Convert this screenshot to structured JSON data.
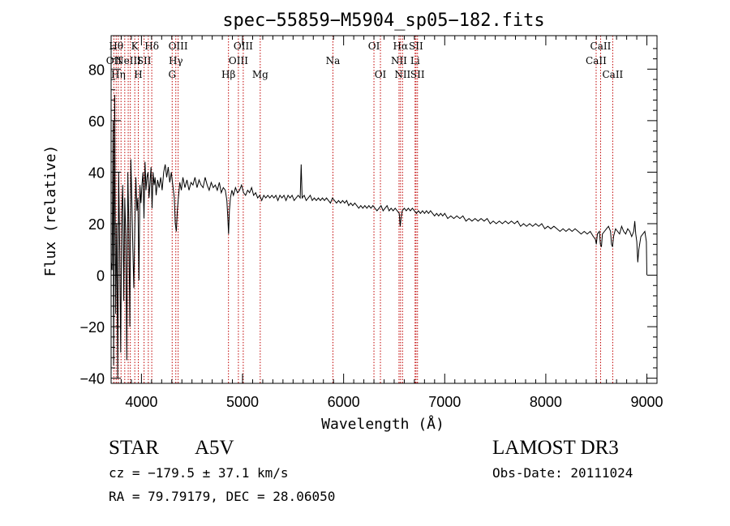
{
  "chart_data": {
    "type": "line",
    "title": "spec−55859−M5904_sp05−182.fits",
    "xlabel": "Wavelength (Å)",
    "ylabel": "Flux (relative)",
    "xlim": [
      3700,
      9100
    ],
    "ylim": [
      -42,
      93
    ],
    "x_ticks": [
      4000,
      5000,
      6000,
      7000,
      8000,
      9000
    ],
    "y_ticks": [
      -40,
      -20,
      0,
      20,
      40,
      60,
      80
    ],
    "x_tick_labels": [
      "4000",
      "5000",
      "6000",
      "7000",
      "8000",
      "9000"
    ],
    "y_tick_labels": [
      "−40",
      "−20",
      "0",
      "20",
      "40",
      "60",
      "80"
    ],
    "series": [
      {
        "name": "spectrum",
        "points": [
          [
            3700,
            5
          ],
          [
            3710,
            2
          ],
          [
            3720,
            60
          ],
          [
            3725,
            -35
          ],
          [
            3735,
            70
          ],
          [
            3745,
            -15
          ],
          [
            3755,
            20
          ],
          [
            3765,
            -40
          ],
          [
            3775,
            40
          ],
          [
            3785,
            10
          ],
          [
            3795,
            -30
          ],
          [
            3805,
            25
          ],
          [
            3815,
            35
          ],
          [
            3825,
            -10
          ],
          [
            3835,
            30
          ],
          [
            3845,
            15
          ],
          [
            3855,
            -33
          ],
          [
            3865,
            40
          ],
          [
            3875,
            20
          ],
          [
            3885,
            -20
          ],
          [
            3895,
            45
          ],
          [
            3905,
            30
          ],
          [
            3915,
            10
          ],
          [
            3925,
            -5
          ],
          [
            3935,
            20
          ],
          [
            3945,
            38
          ],
          [
            3955,
            25
          ],
          [
            3965,
            30
          ],
          [
            3975,
            -2
          ],
          [
            3985,
            35
          ],
          [
            3995,
            28
          ],
          [
            4005,
            35
          ],
          [
            4015,
            40
          ],
          [
            4025,
            22
          ],
          [
            4035,
            44
          ],
          [
            4045,
            33
          ],
          [
            4055,
            38
          ],
          [
            4065,
            40
          ],
          [
            4075,
            30
          ],
          [
            4085,
            36
          ],
          [
            4095,
            42
          ],
          [
            4105,
            26
          ],
          [
            4115,
            40
          ],
          [
            4125,
            35
          ],
          [
            4135,
            38
          ],
          [
            4145,
            31
          ],
          [
            4160,
            37
          ],
          [
            4175,
            34
          ],
          [
            4190,
            38
          ],
          [
            4205,
            33
          ],
          [
            4220,
            40
          ],
          [
            4235,
            43
          ],
          [
            4250,
            38
          ],
          [
            4265,
            42
          ],
          [
            4280,
            36
          ],
          [
            4295,
            40
          ],
          [
            4310,
            35
          ],
          [
            4325,
            30
          ],
          [
            4335,
            20
          ],
          [
            4345,
            17
          ],
          [
            4355,
            25
          ],
          [
            4365,
            30
          ],
          [
            4380,
            36
          ],
          [
            4395,
            33
          ],
          [
            4410,
            38
          ],
          [
            4430,
            34
          ],
          [
            4450,
            37
          ],
          [
            4470,
            33
          ],
          [
            4490,
            36
          ],
          [
            4510,
            35
          ],
          [
            4530,
            38
          ],
          [
            4550,
            34
          ],
          [
            4570,
            37
          ],
          [
            4590,
            35
          ],
          [
            4610,
            34
          ],
          [
            4630,
            38
          ],
          [
            4650,
            35
          ],
          [
            4670,
            33
          ],
          [
            4690,
            36
          ],
          [
            4710,
            34
          ],
          [
            4730,
            35
          ],
          [
            4750,
            33
          ],
          [
            4770,
            36
          ],
          [
            4790,
            32
          ],
          [
            4810,
            34
          ],
          [
            4830,
            33
          ],
          [
            4845,
            29
          ],
          [
            4855,
            22
          ],
          [
            4862,
            16
          ],
          [
            4870,
            25
          ],
          [
            4880,
            30
          ],
          [
            4895,
            33
          ],
          [
            4910,
            31
          ],
          [
            4930,
            34
          ],
          [
            4950,
            32
          ],
          [
            4970,
            33
          ],
          [
            4990,
            35
          ],
          [
            5010,
            32
          ],
          [
            5030,
            31
          ],
          [
            5050,
            33
          ],
          [
            5070,
            32
          ],
          [
            5090,
            34
          ],
          [
            5110,
            31
          ],
          [
            5130,
            32
          ],
          [
            5150,
            30
          ],
          [
            5170,
            31
          ],
          [
            5190,
            29
          ],
          [
            5210,
            31
          ],
          [
            5230,
            30
          ],
          [
            5250,
            31
          ],
          [
            5270,
            30
          ],
          [
            5290,
            31
          ],
          [
            5310,
            30
          ],
          [
            5330,
            31
          ],
          [
            5350,
            29
          ],
          [
            5370,
            31
          ],
          [
            5390,
            30
          ],
          [
            5410,
            31
          ],
          [
            5430,
            29
          ],
          [
            5450,
            31
          ],
          [
            5470,
            30
          ],
          [
            5490,
            31
          ],
          [
            5510,
            29
          ],
          [
            5530,
            30
          ],
          [
            5550,
            31
          ],
          [
            5570,
            30
          ],
          [
            5580,
            43
          ],
          [
            5590,
            30
          ],
          [
            5610,
            31
          ],
          [
            5630,
            29
          ],
          [
            5650,
            30
          ],
          [
            5670,
            31
          ],
          [
            5690,
            29
          ],
          [
            5710,
            30
          ],
          [
            5730,
            29
          ],
          [
            5750,
            30
          ],
          [
            5770,
            29
          ],
          [
            5790,
            30
          ],
          [
            5810,
            29
          ],
          [
            5830,
            30
          ],
          [
            5850,
            29
          ],
          [
            5870,
            28
          ],
          [
            5890,
            30
          ],
          [
            5910,
            29
          ],
          [
            5930,
            28
          ],
          [
            5950,
            29
          ],
          [
            5970,
            28
          ],
          [
            5990,
            29
          ],
          [
            6010,
            28
          ],
          [
            6030,
            29
          ],
          [
            6050,
            27
          ],
          [
            6070,
            28
          ],
          [
            6090,
            27
          ],
          [
            6110,
            28
          ],
          [
            6130,
            27
          ],
          [
            6150,
            26
          ],
          [
            6170,
            27
          ],
          [
            6190,
            26
          ],
          [
            6210,
            27
          ],
          [
            6230,
            26
          ],
          [
            6250,
            27
          ],
          [
            6270,
            26
          ],
          [
            6290,
            27
          ],
          [
            6310,
            26
          ],
          [
            6330,
            25
          ],
          [
            6350,
            26
          ],
          [
            6370,
            27
          ],
          [
            6390,
            25
          ],
          [
            6410,
            26
          ],
          [
            6430,
            27
          ],
          [
            6450,
            25
          ],
          [
            6470,
            26
          ],
          [
            6490,
            25
          ],
          [
            6510,
            26
          ],
          [
            6530,
            25
          ],
          [
            6550,
            24
          ],
          [
            6560,
            19
          ],
          [
            6568,
            22
          ],
          [
            6580,
            25
          ],
          [
            6600,
            26
          ],
          [
            6620,
            25
          ],
          [
            6640,
            26
          ],
          [
            6660,
            25
          ],
          [
            6680,
            26
          ],
          [
            6700,
            25
          ],
          [
            6720,
            24
          ],
          [
            6740,
            25
          ],
          [
            6760,
            24
          ],
          [
            6780,
            25
          ],
          [
            6800,
            24
          ],
          [
            6820,
            25
          ],
          [
            6840,
            24
          ],
          [
            6860,
            25
          ],
          [
            6880,
            24
          ],
          [
            6900,
            23
          ],
          [
            6920,
            24
          ],
          [
            6940,
            23
          ],
          [
            6960,
            24
          ],
          [
            6980,
            23
          ],
          [
            7000,
            24
          ],
          [
            7030,
            22
          ],
          [
            7060,
            23
          ],
          [
            7090,
            22
          ],
          [
            7120,
            23
          ],
          [
            7150,
            22
          ],
          [
            7180,
            23
          ],
          [
            7210,
            21
          ],
          [
            7240,
            22
          ],
          [
            7270,
            21
          ],
          [
            7300,
            22
          ],
          [
            7330,
            21
          ],
          [
            7360,
            22
          ],
          [
            7390,
            21
          ],
          [
            7420,
            22
          ],
          [
            7450,
            20
          ],
          [
            7480,
            21
          ],
          [
            7510,
            20
          ],
          [
            7540,
            21
          ],
          [
            7570,
            20
          ],
          [
            7600,
            21
          ],
          [
            7630,
            20
          ],
          [
            7660,
            21
          ],
          [
            7690,
            20
          ],
          [
            7720,
            21
          ],
          [
            7750,
            19
          ],
          [
            7780,
            20
          ],
          [
            7810,
            19
          ],
          [
            7840,
            20
          ],
          [
            7870,
            19
          ],
          [
            7900,
            20
          ],
          [
            7930,
            19
          ],
          [
            7960,
            20
          ],
          [
            7990,
            18
          ],
          [
            8020,
            19
          ],
          [
            8050,
            18
          ],
          [
            8080,
            19
          ],
          [
            8110,
            18
          ],
          [
            8140,
            17
          ],
          [
            8170,
            18
          ],
          [
            8200,
            17
          ],
          [
            8230,
            18
          ],
          [
            8260,
            17
          ],
          [
            8290,
            18
          ],
          [
            8320,
            17
          ],
          [
            8350,
            16
          ],
          [
            8380,
            17
          ],
          [
            8410,
            16
          ],
          [
            8440,
            17
          ],
          [
            8470,
            15
          ],
          [
            8490,
            14
          ],
          [
            8500,
            12
          ],
          [
            8510,
            16
          ],
          [
            8530,
            17
          ],
          [
            8540,
            12
          ],
          [
            8550,
            11
          ],
          [
            8560,
            16
          ],
          [
            8580,
            17
          ],
          [
            8600,
            18
          ],
          [
            8620,
            19
          ],
          [
            8640,
            17
          ],
          [
            8650,
            12
          ],
          [
            8660,
            11
          ],
          [
            8670,
            15
          ],
          [
            8690,
            18
          ],
          [
            8710,
            17
          ],
          [
            8730,
            16
          ],
          [
            8750,
            19
          ],
          [
            8770,
            17
          ],
          [
            8790,
            16
          ],
          [
            8810,
            18
          ],
          [
            8830,
            17
          ],
          [
            8850,
            15
          ],
          [
            8870,
            17
          ],
          [
            8880,
            21
          ],
          [
            8890,
            16
          ],
          [
            8900,
            13
          ],
          [
            8910,
            5
          ],
          [
            8920,
            10
          ],
          [
            8940,
            15
          ],
          [
            8960,
            16
          ],
          [
            8980,
            17
          ],
          [
            8995,
            13
          ],
          [
            9000,
            0
          ]
        ]
      }
    ],
    "lines": [
      {
        "wl": 3727,
        "label": "OII",
        "row": 2
      },
      {
        "wl": 3750,
        "label": "Hθ",
        "row": 1
      },
      {
        "wl": 3771,
        "label": "Hη",
        "row": 3
      },
      {
        "wl": 3798,
        "label": "",
        "row": 0
      },
      {
        "wl": 3835,
        "label": "",
        "row": 0
      },
      {
        "wl": 3869,
        "label": "NeIII",
        "row": 2
      },
      {
        "wl": 3890,
        "label": "",
        "row": 0
      },
      {
        "wl": 3934,
        "label": "K",
        "row": 1
      },
      {
        "wl": 3969,
        "label": "H",
        "row": 3
      },
      {
        "wl": 4026,
        "label": "SII",
        "row": 2
      },
      {
        "wl": 4068,
        "label": "",
        "row": 0
      },
      {
        "wl": 4102,
        "label": "Hδ",
        "row": 1
      },
      {
        "wl": 4304,
        "label": "G",
        "row": 3
      },
      {
        "wl": 4340,
        "label": "Hγ",
        "row": 2
      },
      {
        "wl": 4363,
        "label": "OIII",
        "row": 1
      },
      {
        "wl": 4861,
        "label": "Hβ",
        "row": 3
      },
      {
        "wl": 4959,
        "label": "OIII",
        "row": 2
      },
      {
        "wl": 5007,
        "label": "OIII",
        "row": 1
      },
      {
        "wl": 5175,
        "label": "Mg",
        "row": 3
      },
      {
        "wl": 5894,
        "label": "Na",
        "row": 2
      },
      {
        "wl": 6300,
        "label": "OI",
        "row": 1
      },
      {
        "wl": 6364,
        "label": "OI",
        "row": 3
      },
      {
        "wl": 6548,
        "label": "NII",
        "row": 2
      },
      {
        "wl": 6563,
        "label": "Hα",
        "row": 1
      },
      {
        "wl": 6583,
        "label": "NII",
        "row": 3
      },
      {
        "wl": 6707,
        "label": "Li",
        "row": 2
      },
      {
        "wl": 6716,
        "label": "SII",
        "row": 1
      },
      {
        "wl": 6731,
        "label": "SII",
        "row": 3
      },
      {
        "wl": 8498,
        "label": "CaII",
        "row": 2
      },
      {
        "wl": 8542,
        "label": "CaII",
        "row": 1
      },
      {
        "wl": 8662,
        "label": "CaII",
        "row": 3
      }
    ]
  },
  "info": {
    "class": "STAR",
    "subclass": "A5V",
    "survey": "LAMOST DR3",
    "cz": "cz = −179.5 ± 37.1 km/s",
    "obsdate": "Obs-Date: 20111024",
    "radec": "RA =  79.79179, DEC =  28.06050"
  },
  "colors": {
    "axis": "#000000",
    "spectrum": "#000000",
    "line_marker": "#c00000"
  }
}
